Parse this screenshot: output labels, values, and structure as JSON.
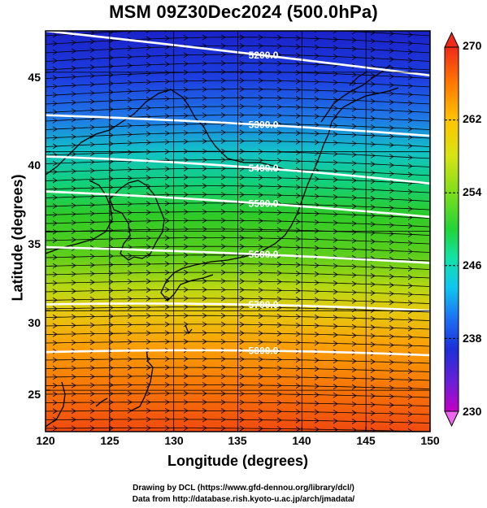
{
  "title": "MSM 09Z30Dec2024 (500.0hPa)",
  "map": {
    "xlabel": "Longitude (degrees)",
    "ylabel": "Latitude  (degrees)",
    "lon_range": [
      120,
      150
    ],
    "lat_range": [
      22.4,
      47.6
    ],
    "lon_ticks": [
      "120",
      "125",
      "130",
      "135",
      "140",
      "145",
      "150"
    ],
    "lat_ticks": [
      "45",
      "40",
      "35",
      "30",
      "25"
    ],
    "grid": true,
    "flow_direction": "west-to-east streamlines",
    "contours": [
      {
        "label": "5200.0",
        "lat_west": 47.6,
        "lat_mid": 46.3,
        "lat_east": 44.8
      },
      {
        "label": "5300.0",
        "lat_west": 42.3,
        "lat_mid": 41.9,
        "lat_east": 41.0
      },
      {
        "label": "5400.0",
        "lat_west": 39.7,
        "lat_mid": 39.3,
        "lat_east": 38.0
      },
      {
        "label": "5500.0",
        "lat_west": 37.5,
        "lat_mid": 37.0,
        "lat_east": 35.9
      },
      {
        "label": "5600.0",
        "lat_west": 34.0,
        "lat_mid": 33.7,
        "lat_east": 33.0
      },
      {
        "label": "5700.0",
        "lat_west": 30.4,
        "lat_mid": 30.6,
        "lat_east": 30.0
      },
      {
        "label": "5800.0",
        "lat_west": 27.4,
        "lat_mid": 27.7,
        "lat_east": 27.2
      }
    ]
  },
  "colorbar": {
    "ticks": [
      "270",
      "262",
      "254",
      "246",
      "238",
      "230"
    ],
    "min": 230,
    "max": 270,
    "colors": [
      "#c400c4",
      "#6a1fd6",
      "#1c2fd8",
      "#1d6cf2",
      "#10c6f0",
      "#12e2a6",
      "#22d33a",
      "#7fde1b",
      "#d6e414",
      "#ffc400",
      "#ff7a00",
      "#f02a1a"
    ]
  },
  "credits": [
    "Drawing by DCL (https://www.gfd-dennou.org/library/dcl/)",
    "Data from http://database.rish.kyoto-u.ac.jp/arch/jmadata/"
  ]
}
